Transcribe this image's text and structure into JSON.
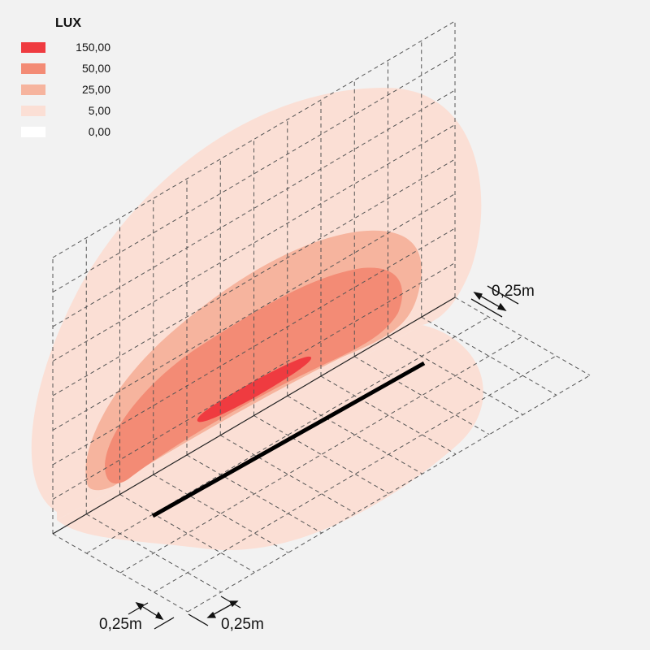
{
  "legend": {
    "title": "LUX",
    "items": [
      {
        "label": "150,00",
        "color": "#ef3b40"
      },
      {
        "label": "50,00",
        "color": "#f38b75"
      },
      {
        "label": "25,00",
        "color": "#f6b49e"
      },
      {
        "label": "5,00",
        "color": "#fbdfd5"
      },
      {
        "label": "0,00",
        "color": "#ffffff"
      }
    ]
  },
  "dimensions": {
    "right_grid": "0,25m",
    "bottom_left": "0,25m",
    "bottom_right": "0,25m"
  },
  "colors": {
    "background": "#f2f2f2",
    "grid_line": "#555555",
    "luminaire": "#000000"
  }
}
